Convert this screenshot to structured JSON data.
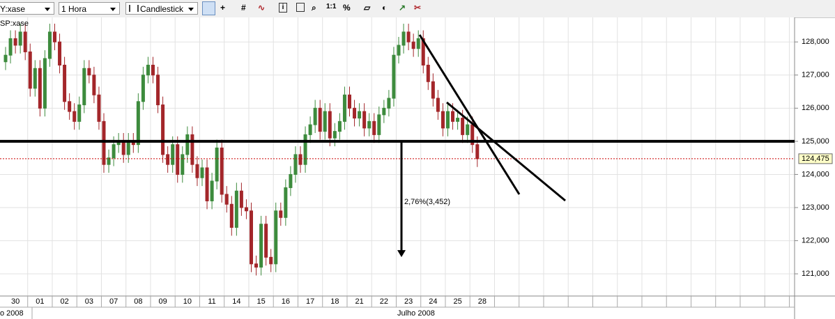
{
  "toolbar": {
    "symbol": "Y:xase",
    "interval": "1 Hora",
    "chart_style": "Candlestick",
    "zoom": "1:1",
    "percent": "%"
  },
  "chart_data": {
    "type": "candlestick",
    "symbol_label": "SP:xase",
    "categories": [
      "30",
      null,
      null,
      null,
      null,
      "01",
      null,
      null,
      null,
      null,
      "02",
      null,
      null,
      null,
      null,
      "03",
      null,
      null,
      null,
      null,
      "07",
      null,
      null,
      null,
      null,
      "08",
      null,
      null,
      null,
      null,
      "09",
      null,
      null,
      null,
      null,
      "10",
      null,
      null,
      null,
      null,
      "11",
      null,
      null,
      null,
      null,
      "14",
      null,
      null,
      null,
      null,
      "15",
      null,
      null,
      null,
      null,
      "16",
      null,
      null,
      null,
      null,
      "17",
      null,
      null,
      null,
      null,
      "18",
      null,
      null,
      null,
      null,
      "21",
      null,
      null,
      null,
      null,
      "22",
      null,
      null,
      null,
      null,
      "23",
      null,
      null,
      null,
      null,
      "24",
      null,
      null,
      null,
      null,
      "25",
      null,
      null,
      null,
      null,
      "28",
      null
    ],
    "open": [
      127400,
      127600,
      128100,
      127900,
      128300,
      127700,
      126600,
      127200,
      126000,
      127500,
      128300,
      128000,
      127300,
      126200,
      125900,
      125600,
      126100,
      127200,
      127000,
      126400,
      125600,
      124300,
      124500,
      124900,
      125000,
      124600,
      125000,
      124900,
      126200,
      127000,
      127300,
      127000,
      126100,
      124600,
      124300,
      124900,
      124000,
      124600,
      125200,
      124300,
      123900,
      124200,
      123200,
      123800,
      124800,
      123400,
      123100,
      122400,
      123500,
      123000,
      122900,
      121300,
      121200,
      122500,
      121500,
      121300,
      122900,
      122700,
      123600,
      124000,
      124600,
      124300,
      125200,
      125500,
      126000,
      125300,
      125900,
      125100,
      125300,
      125600,
      126400,
      126000,
      125700,
      125900,
      125400,
      125600,
      125200,
      125800,
      126000,
      126300,
      127600,
      127900,
      128300,
      128000,
      127800,
      128100,
      127300,
      126800,
      126300,
      125900,
      125400,
      125900,
      125600,
      125700,
      125200,
      125500,
      124900
    ],
    "high": [
      127850,
      128350,
      128350,
      128550,
      128550,
      127950,
      127450,
      127450,
      127750,
      128550,
      128550,
      128250,
      127550,
      126450,
      126150,
      126350,
      127450,
      127450,
      127250,
      126650,
      125850,
      124750,
      125150,
      125250,
      125250,
      125250,
      125250,
      126450,
      127250,
      127550,
      127550,
      127250,
      126350,
      124850,
      125150,
      125150,
      124850,
      125450,
      125450,
      124550,
      124450,
      124450,
      124050,
      125050,
      125050,
      123650,
      123350,
      123750,
      123750,
      123250,
      123150,
      121550,
      122750,
      122750,
      121750,
      123150,
      123150,
      123850,
      124250,
      124850,
      124850,
      125450,
      125750,
      126250,
      126250,
      126150,
      126150,
      125550,
      125850,
      126650,
      126650,
      126250,
      126150,
      126150,
      125850,
      125850,
      126050,
      126250,
      126550,
      127850,
      128150,
      128550,
      128550,
      128250,
      128350,
      128350,
      127550,
      127050,
      126550,
      126150,
      126150,
      126150,
      125950,
      125950,
      125750,
      125750,
      125150
    ],
    "low": [
      127150,
      127350,
      127650,
      127650,
      127450,
      126350,
      126350,
      125750,
      125750,
      127250,
      127750,
      127050,
      125950,
      125650,
      125350,
      125350,
      125850,
      126750,
      126150,
      125350,
      124050,
      124050,
      124250,
      124650,
      124350,
      124350,
      124650,
      124650,
      125950,
      126750,
      126750,
      125850,
      124350,
      124050,
      124050,
      123750,
      123750,
      124350,
      124050,
      123650,
      123650,
      122950,
      122950,
      123550,
      123150,
      122850,
      122150,
      122150,
      122750,
      122650,
      121050,
      120950,
      120950,
      121250,
      121050,
      121050,
      122450,
      122450,
      123350,
      123750,
      124050,
      124050,
      124950,
      125250,
      125050,
      125050,
      124850,
      124850,
      125050,
      125350,
      125750,
      125450,
      125450,
      125150,
      125150,
      124950,
      124950,
      125550,
      125750,
      126050,
      127350,
      127650,
      127750,
      127550,
      127550,
      127050,
      126550,
      126050,
      125650,
      125150,
      125150,
      125350,
      125350,
      124950,
      124950,
      124650,
      124225
    ],
    "close": [
      127600,
      128100,
      127900,
      128300,
      127700,
      126600,
      127200,
      126000,
      127500,
      128300,
      128000,
      127300,
      126200,
      125900,
      125600,
      126100,
      127200,
      127000,
      126400,
      125600,
      124300,
      124500,
      124900,
      125000,
      124600,
      125000,
      124900,
      126200,
      127000,
      127300,
      127000,
      126100,
      124600,
      124300,
      124900,
      124000,
      124600,
      125200,
      124300,
      123900,
      124200,
      123200,
      123800,
      124800,
      123400,
      123100,
      122400,
      123500,
      123000,
      122900,
      121300,
      121200,
      122500,
      121500,
      121300,
      122900,
      122700,
      123600,
      124000,
      124600,
      124300,
      125200,
      125500,
      126000,
      125300,
      125900,
      125100,
      125300,
      125600,
      126400,
      126000,
      125700,
      125900,
      125400,
      125600,
      125200,
      125800,
      126000,
      126300,
      127600,
      127900,
      128300,
      128000,
      127800,
      128100,
      127300,
      126800,
      126300,
      125900,
      125400,
      125900,
      125600,
      125700,
      125200,
      125500,
      124900,
      124475
    ],
    "up_color": "#3d8b3d",
    "down_color": "#a3262a",
    "month_labels": [
      "o 2008",
      "Julho 2008"
    ],
    "ylim": [
      120330,
      128740
    ],
    "yticks": [
      {
        "value": 121000,
        "label": "121,000"
      },
      {
        "value": 122000,
        "label": "122,000"
      },
      {
        "value": 123000,
        "label": "123,000"
      },
      {
        "value": 124000,
        "label": "124,000"
      },
      {
        "value": 125000,
        "label": "125,000"
      },
      {
        "value": 126000,
        "label": "126,000"
      },
      {
        "value": 127000,
        "label": "127,000"
      },
      {
        "value": 128000,
        "label": "128,000"
      }
    ],
    "horizontal_line": 125000,
    "last_price": {
      "value": 124475,
      "label": "124,475"
    },
    "measure": {
      "value": 125000,
      "change": 3452,
      "label": "2,76%(3,452)"
    },
    "grid": true
  }
}
